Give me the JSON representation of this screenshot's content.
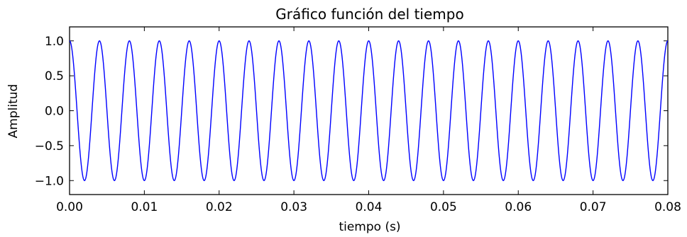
{
  "chart_data": {
    "type": "line",
    "title": "Gráfico función del tiempo",
    "xlabel": "tiempo (s)",
    "ylabel": "Amplitud",
    "xlim": [
      0.0,
      0.08
    ],
    "ylim": [
      -1.2,
      1.2
    ],
    "x_ticks": [
      "0.00",
      "0.01",
      "0.02",
      "0.03",
      "0.04",
      "0.05",
      "0.06",
      "0.07",
      "0.08"
    ],
    "y_ticks": [
      "1.0",
      "0.5",
      "0.0",
      "−0.5",
      "−1.0"
    ],
    "grid": false,
    "series": [
      {
        "function": "cos(2*pi*250*t)",
        "frequency_hz": 250,
        "amplitude": 1.0,
        "x_range": [
          0.0,
          0.08
        ],
        "color": "#0000ff"
      }
    ]
  }
}
